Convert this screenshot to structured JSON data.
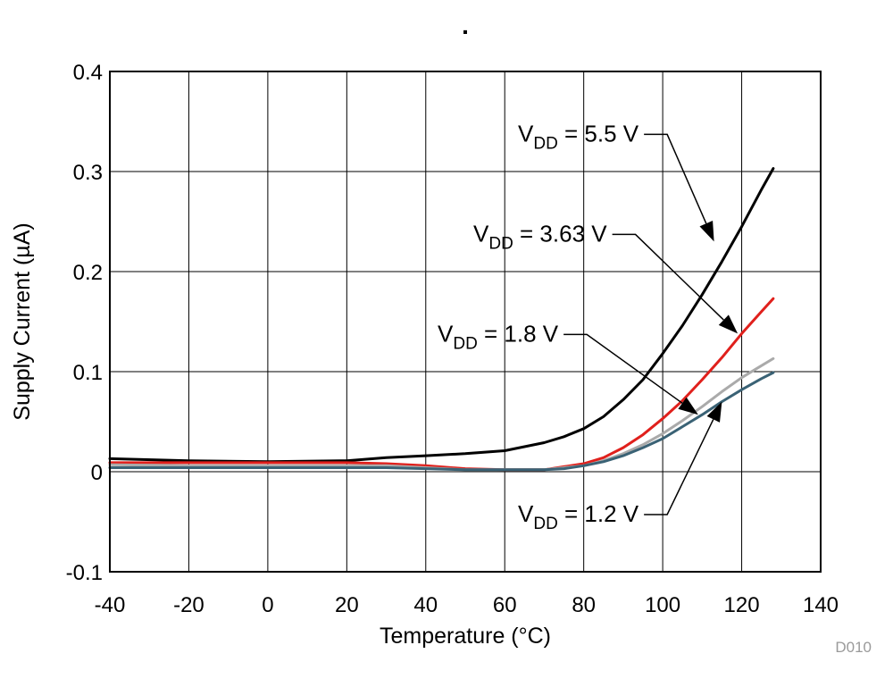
{
  "chart_data": {
    "type": "line",
    "title": ".",
    "xlabel": "Temperature (°C)",
    "ylabel": "Supply Current (µA)",
    "xlim": [
      -40,
      140
    ],
    "ylim": [
      -0.1,
      0.4
    ],
    "xticks": [
      -40,
      -20,
      0,
      20,
      40,
      60,
      80,
      100,
      120,
      140
    ],
    "yticks": [
      -0.1,
      0,
      0.1,
      0.2,
      0.3,
      0.4
    ],
    "xtick_labels": [
      "-40",
      "-20",
      "0",
      "20",
      "40",
      "60",
      "80",
      "100",
      "120",
      "140"
    ],
    "ytick_labels": [
      "-0.1",
      "0",
      "0.1",
      "0.2",
      "0.3",
      "0.4"
    ],
    "grid": true,
    "figure_id": "D010",
    "series": [
      {
        "name": "VDD = 5.5 V",
        "label_main": "V",
        "label_sub": "DD",
        "label_rest": " = 5.5 V",
        "color": "#000000",
        "x": [
          -40,
          -20,
          0,
          20,
          30,
          40,
          50,
          60,
          65,
          70,
          75,
          80,
          85,
          90,
          95,
          100,
          105,
          110,
          115,
          120,
          125,
          128
        ],
        "y": [
          0.013,
          0.011,
          0.01,
          0.011,
          0.014,
          0.016,
          0.018,
          0.021,
          0.025,
          0.029,
          0.035,
          0.043,
          0.055,
          0.072,
          0.092,
          0.118,
          0.146,
          0.177,
          0.21,
          0.245,
          0.282,
          0.303
        ]
      },
      {
        "name": "VDD = 3.63 V",
        "label_main": "V",
        "label_sub": "DD",
        "label_rest": " = 3.63 V",
        "color": "#e0201c",
        "x": [
          -40,
          -20,
          0,
          20,
          30,
          40,
          50,
          60,
          65,
          70,
          75,
          80,
          85,
          90,
          95,
          100,
          105,
          110,
          115,
          120,
          125,
          128
        ],
        "y": [
          0.009,
          0.009,
          0.009,
          0.009,
          0.008,
          0.006,
          0.003,
          0.002,
          0.002,
          0.002,
          0.005,
          0.008,
          0.014,
          0.024,
          0.037,
          0.053,
          0.071,
          0.092,
          0.114,
          0.138,
          0.16,
          0.173
        ]
      },
      {
        "name": "VDD = 1.8 V",
        "label_main": "V",
        "label_sub": "DD",
        "label_rest": " = 1.8 V",
        "color": "#aaaaaa",
        "x": [
          -40,
          -20,
          0,
          20,
          30,
          40,
          50,
          60,
          65,
          70,
          75,
          80,
          85,
          90,
          95,
          100,
          105,
          110,
          115,
          120,
          125,
          128
        ],
        "y": [
          0.007,
          0.006,
          0.006,
          0.006,
          0.006,
          0.004,
          0.002,
          0.002,
          0.002,
          0.002,
          0.004,
          0.006,
          0.011,
          0.018,
          0.027,
          0.038,
          0.051,
          0.065,
          0.08,
          0.094,
          0.106,
          0.113
        ]
      },
      {
        "name": "VDD = 1.2 V",
        "label_main": "V",
        "label_sub": "DD",
        "label_rest": " = 1.2 V",
        "color": "#3a6275",
        "x": [
          -40,
          -20,
          0,
          20,
          30,
          40,
          50,
          60,
          65,
          70,
          75,
          80,
          85,
          90,
          95,
          100,
          105,
          110,
          115,
          120,
          125,
          128
        ],
        "y": [
          0.004,
          0.004,
          0.004,
          0.004,
          0.004,
          0.003,
          0.002,
          0.002,
          0.002,
          0.002,
          0.003,
          0.006,
          0.01,
          0.016,
          0.024,
          0.033,
          0.045,
          0.057,
          0.07,
          0.082,
          0.093,
          0.099
        ]
      }
    ],
    "annotations": [
      {
        "series": 0,
        "text_x": 580,
        "text_y": 0.33,
        "target_x": 113,
        "target_y": 0.23
      },
      {
        "series": 1,
        "text_x": 530,
        "text_y": 0.23,
        "target_x": 119,
        "target_y": 0.138
      },
      {
        "series": 2,
        "text_x": 490,
        "text_y": 0.13,
        "target_x": 109,
        "target_y": 0.057
      },
      {
        "series": 3,
        "text_x": 580,
        "text_y": -0.05,
        "target_x": 115,
        "target_y": 0.07
      }
    ]
  }
}
